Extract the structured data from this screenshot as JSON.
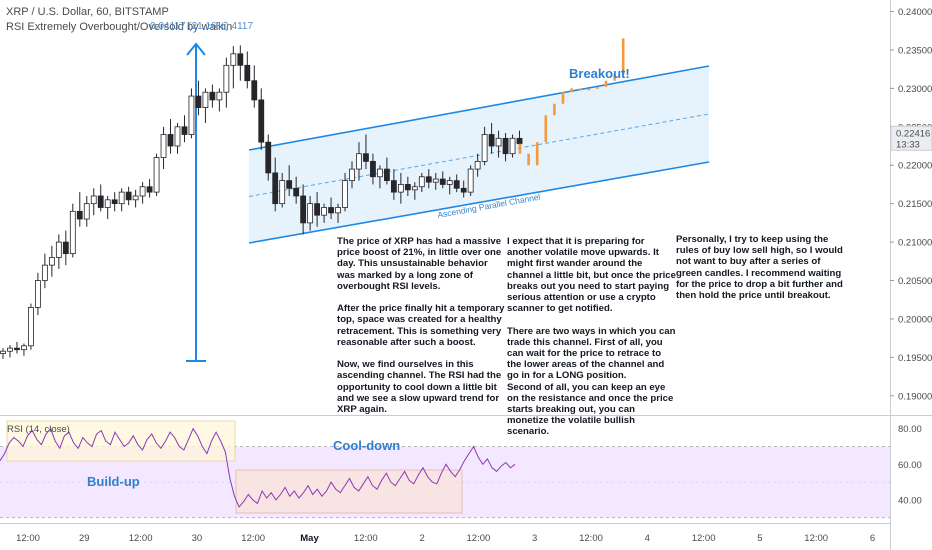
{
  "header": {
    "symbol_line": "XRP / U.S. Dollar, 60, BITSTAMP",
    "indicator_line": "RSI Extremely Overbought/Oversold by walkin"
  },
  "measure_label": "0.04117 (21.16%) 4117",
  "price_badge": {
    "value": "0.22416",
    "time": "13:33"
  },
  "annotations": {
    "breakout": "Breakout!",
    "channel": "Ascending Parallel Channel",
    "cooldown": "Cool-down",
    "buildup": "Build-up",
    "rsi_label": "RSI (14, close)"
  },
  "notes": [
    "The price of XRP has had a massive\nprice boost of 21%, in little over one\nday. This unsustainable behavior\nwas marked by a long zone of\noverbought RSI levels.\n\nAfter the price finally hit a temporary\ntop, space was created for a healthy\nretracement. This is something very\nreasonable after such a boost.\n\nNow, we find ourselves in this\nascending channel. The RSI had the\nopportunity to cool down a little bit\nand we see a slow upward trend for\nXRP again.",
    "I expect that it is preparing for\nanother volatile move upwards. It\nmight first wander around the\nchannel a little bit, but once the price\nbreaks out you need to start paying\nserious attention or use a crypto\nscanner to get notified.\n\nThere are two ways in which you can\ntrade this channel. First of all, you\ncan wait for the price to retrace to\nthe lower areas of the channel and\ngo in for a LONG position.\nSecond of all, you can keep an eye\non the resistance and once the price\nstarts breaking out, you can\nmonetize the volatile bullish\nscenario.",
    "Personally, I try to keep using the\nrules of buy low sell high, so I would\nnot want to buy after a series of\ngreen candles. I recommend waiting\nfor the price to drop a bit further and\nthen hold the price until breakout."
  ],
  "chart_data": [
    {
      "type": "candlestick",
      "title": "XRP / U.S. Dollar, 60, BITSTAMP",
      "y_ticks": [
        "0.24000",
        "0.23500",
        "0.23000",
        "0.22500",
        "0.22000",
        "0.21500",
        "0.21000",
        "0.20500",
        "0.20000",
        "0.19500",
        "0.19000"
      ],
      "ylim": [
        0.1875,
        0.2415
      ],
      "x_ticks": [
        "12:00",
        "29",
        "12:00",
        "30",
        "12:00",
        "May",
        "12:00",
        "2",
        "12:00",
        "3",
        "12:00",
        "4",
        "12:00",
        "5",
        "12:00",
        "6"
      ],
      "bold_ticks": [
        "May"
      ],
      "ohlc": [
        [
          0.1955,
          0.1962,
          0.1948,
          0.1958
        ],
        [
          0.1958,
          0.1966,
          0.195,
          0.1962
        ],
        [
          0.1962,
          0.197,
          0.1955,
          0.196
        ],
        [
          0.196,
          0.1968,
          0.1952,
          0.1965
        ],
        [
          0.1965,
          0.202,
          0.196,
          0.2015
        ],
        [
          0.2015,
          0.206,
          0.2005,
          0.205
        ],
        [
          0.205,
          0.2085,
          0.204,
          0.207
        ],
        [
          0.207,
          0.2095,
          0.2055,
          0.208
        ],
        [
          0.208,
          0.211,
          0.2065,
          0.21
        ],
        [
          0.21,
          0.2115,
          0.207,
          0.2085
        ],
        [
          0.2085,
          0.215,
          0.208,
          0.214
        ],
        [
          0.214,
          0.2165,
          0.212,
          0.213
        ],
        [
          0.213,
          0.216,
          0.212,
          0.215
        ],
        [
          0.215,
          0.217,
          0.2135,
          0.216
        ],
        [
          0.216,
          0.2175,
          0.214,
          0.2145
        ],
        [
          0.2145,
          0.216,
          0.213,
          0.2155
        ],
        [
          0.2155,
          0.2165,
          0.214,
          0.215
        ],
        [
          0.215,
          0.217,
          0.214,
          0.2165
        ],
        [
          0.2165,
          0.2172,
          0.2148,
          0.2155
        ],
        [
          0.2155,
          0.2168,
          0.2145,
          0.216
        ],
        [
          0.216,
          0.2178,
          0.215,
          0.2172
        ],
        [
          0.2172,
          0.2182,
          0.2158,
          0.2165
        ],
        [
          0.2165,
          0.2215,
          0.216,
          0.221
        ],
        [
          0.221,
          0.225,
          0.2195,
          0.224
        ],
        [
          0.224,
          0.226,
          0.2215,
          0.2225
        ],
        [
          0.2225,
          0.2255,
          0.2215,
          0.225
        ],
        [
          0.225,
          0.2265,
          0.223,
          0.224
        ],
        [
          0.224,
          0.23,
          0.2235,
          0.229
        ],
        [
          0.229,
          0.231,
          0.2265,
          0.2275
        ],
        [
          0.2275,
          0.23,
          0.2255,
          0.2295
        ],
        [
          0.2295,
          0.2305,
          0.2275,
          0.2285
        ],
        [
          0.2285,
          0.23,
          0.227,
          0.2295
        ],
        [
          0.2295,
          0.234,
          0.2275,
          0.233
        ],
        [
          0.233,
          0.2355,
          0.23,
          0.2345
        ],
        [
          0.2345,
          0.2356,
          0.231,
          0.233
        ],
        [
          0.233,
          0.2348,
          0.23,
          0.231
        ],
        [
          0.231,
          0.233,
          0.2275,
          0.2285
        ],
        [
          0.2285,
          0.23,
          0.222,
          0.223
        ],
        [
          0.223,
          0.224,
          0.218,
          0.219
        ],
        [
          0.219,
          0.221,
          0.214,
          0.215
        ],
        [
          0.215,
          0.219,
          0.2145,
          0.218
        ],
        [
          0.218,
          0.22,
          0.216,
          0.217
        ],
        [
          0.217,
          0.2185,
          0.215,
          0.216
        ],
        [
          0.216,
          0.2175,
          0.211,
          0.2125
        ],
        [
          0.2125,
          0.216,
          0.2115,
          0.215
        ],
        [
          0.215,
          0.2165,
          0.212,
          0.2135
        ],
        [
          0.2135,
          0.215,
          0.2125,
          0.2145
        ],
        [
          0.2145,
          0.2158,
          0.213,
          0.2138
        ],
        [
          0.2138,
          0.215,
          0.2125,
          0.2145
        ],
        [
          0.2145,
          0.219,
          0.214,
          0.218
        ],
        [
          0.218,
          0.2205,
          0.217,
          0.2195
        ],
        [
          0.2195,
          0.223,
          0.218,
          0.2215
        ],
        [
          0.2215,
          0.224,
          0.2195,
          0.2205
        ],
        [
          0.2205,
          0.2215,
          0.2175,
          0.2185
        ],
        [
          0.2185,
          0.22,
          0.217,
          0.2195
        ],
        [
          0.2195,
          0.221,
          0.2175,
          0.218
        ],
        [
          0.218,
          0.2195,
          0.2155,
          0.2165
        ],
        [
          0.2165,
          0.219,
          0.215,
          0.2175
        ],
        [
          0.2175,
          0.2185,
          0.216,
          0.2168
        ],
        [
          0.2168,
          0.2178,
          0.2155,
          0.2172
        ],
        [
          0.2172,
          0.219,
          0.2165,
          0.2185
        ],
        [
          0.2185,
          0.2195,
          0.217,
          0.2178
        ],
        [
          0.2178,
          0.219,
          0.2168,
          0.2182
        ],
        [
          0.2182,
          0.2192,
          0.217,
          0.2175
        ],
        [
          0.2175,
          0.2185,
          0.2162,
          0.218
        ],
        [
          0.218,
          0.2188,
          0.2165,
          0.217
        ],
        [
          0.217,
          0.218,
          0.2158,
          0.2165
        ],
        [
          0.2165,
          0.22,
          0.216,
          0.2195
        ],
        [
          0.2195,
          0.2215,
          0.2185,
          0.2205
        ],
        [
          0.2205,
          0.225,
          0.22,
          0.224
        ],
        [
          0.224,
          0.2255,
          0.2215,
          0.2225
        ],
        [
          0.2225,
          0.2245,
          0.221,
          0.2235
        ],
        [
          0.2235,
          0.2242,
          0.2205,
          0.2215
        ],
        [
          0.2215,
          0.224,
          0.221,
          0.2235
        ],
        [
          0.2235,
          0.2245,
          0.2218,
          0.2228
        ]
      ],
      "projection": [
        0.2215,
        0.22,
        0.223,
        0.2265,
        0.228,
        0.2295,
        0.23,
        0.2298,
        0.23,
        0.2302,
        0.231,
        0.2318,
        0.2365
      ],
      "channel": {
        "support": [
          0.221,
          0.2205
        ],
        "resistance": [
          0.224,
          0.2332
        ]
      },
      "measure_range": [
        0.1945,
        0.2356
      ]
    },
    {
      "type": "line",
      "title": "RSI (14, close)",
      "y_ticks": [
        "80.00",
        "60.00",
        "40.00"
      ],
      "ylim": [
        27,
        86
      ],
      "overbought": 70,
      "oversold": 30,
      "values": [
        62,
        66,
        72,
        75,
        73,
        70,
        76,
        79,
        74,
        71,
        77,
        80,
        73,
        69,
        76,
        78,
        72,
        69,
        75,
        72,
        70,
        77,
        79,
        73,
        71,
        78,
        74,
        70,
        72,
        76,
        71,
        68,
        74,
        77,
        72,
        69,
        73,
        78,
        75,
        70,
        68,
        74,
        80,
        76,
        70,
        66,
        73,
        78,
        73,
        67,
        52,
        42,
        36,
        39,
        43,
        40,
        38,
        45,
        41,
        44,
        40,
        43,
        47,
        42,
        45,
        41,
        44,
        48,
        43,
        46,
        42,
        45,
        50,
        46,
        44,
        48,
        52,
        47,
        45,
        49,
        53,
        48,
        46,
        51,
        55,
        50,
        48,
        52,
        56,
        51,
        49,
        54,
        58,
        53,
        50,
        49,
        55,
        60,
        56,
        53,
        57,
        62,
        66,
        70,
        64,
        60,
        63,
        58,
        56,
        59,
        61,
        58,
        60
      ]
    }
  ]
}
